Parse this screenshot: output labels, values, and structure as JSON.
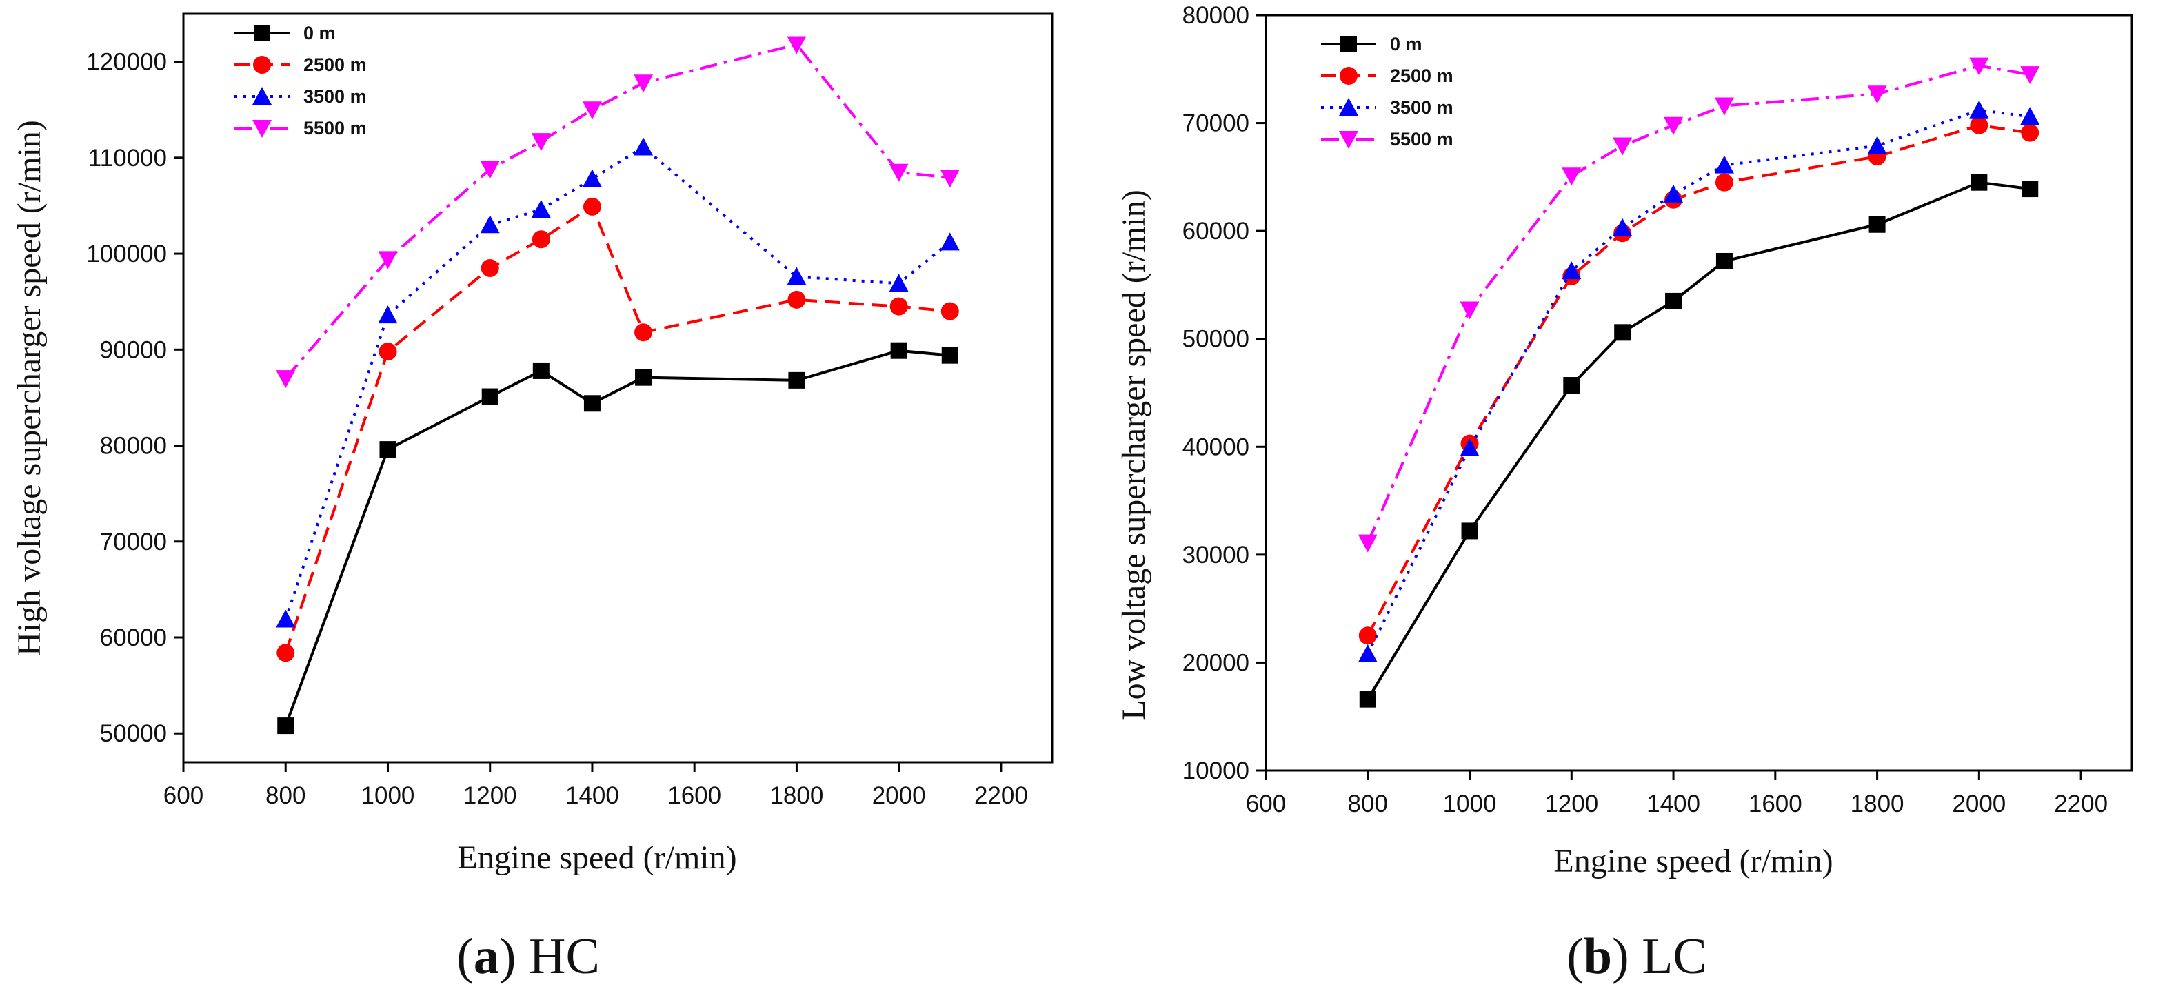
{
  "panels": [
    {
      "caption_letter": "a",
      "caption_text": "HC"
    },
    {
      "caption_letter": "b",
      "caption_text": "LC"
    }
  ],
  "chart_data": [
    {
      "type": "line",
      "title": "",
      "xlabel": "Engine speed  (r/min)",
      "ylabel": "High voltage supercharger speed (r/min)",
      "xlim": [
        600,
        2300
      ],
      "ylim": [
        47000,
        125000
      ],
      "xticks": [
        600,
        800,
        1000,
        1200,
        1400,
        1600,
        1800,
        2000,
        2200
      ],
      "yticks": [
        50000,
        60000,
        70000,
        80000,
        90000,
        100000,
        110000,
        120000
      ],
      "legend_position": "top-left",
      "x": [
        800,
        1000,
        1200,
        1300,
        1400,
        1500,
        1800,
        2000,
        2100
      ],
      "series": [
        {
          "name": "0 m",
          "color": "#000000",
          "marker": "square",
          "dash": "solid",
          "values": [
            50800,
            79600,
            85100,
            87800,
            84400,
            87100,
            86800,
            89900,
            89400
          ]
        },
        {
          "name": "2500 m",
          "color": "#ff0000",
          "marker": "circle",
          "dash": "dashed",
          "values": [
            58400,
            89800,
            98500,
            101500,
            104900,
            91800,
            95200,
            94500,
            94000
          ]
        },
        {
          "name": "3500 m",
          "color": "#0000ff",
          "marker": "triangle-up",
          "dash": "dotted",
          "values": [
            61900,
            93600,
            103000,
            104600,
            107800,
            111100,
            97600,
            96900,
            101200
          ]
        },
        {
          "name": "5500 m",
          "color": "#ff00ff",
          "marker": "triangle-down",
          "dash": "dashdot",
          "values": [
            87000,
            99400,
            108800,
            111700,
            115000,
            117800,
            121800,
            108500,
            107900
          ]
        }
      ]
    },
    {
      "type": "line",
      "title": "",
      "xlabel": "Engine speed  (r/min)",
      "ylabel": "Low voltage supercharger speed  (r/min)",
      "xlim": [
        600,
        2300
      ],
      "ylim": [
        10000,
        80000
      ],
      "xticks": [
        600,
        800,
        1000,
        1200,
        1400,
        1600,
        1800,
        2000,
        2200
      ],
      "yticks": [
        10000,
        20000,
        30000,
        40000,
        50000,
        60000,
        70000,
        80000
      ],
      "legend_position": "top-left",
      "x": [
        800,
        1000,
        1200,
        1300,
        1400,
        1500,
        1800,
        2000,
        2100
      ],
      "series": [
        {
          "name": "0 m",
          "color": "#000000",
          "marker": "square",
          "dash": "solid",
          "values": [
            16600,
            32200,
            45700,
            50600,
            53500,
            57200,
            60600,
            64500,
            63900
          ]
        },
        {
          "name": "2500 m",
          "color": "#ff0000",
          "marker": "circle",
          "dash": "dashed",
          "values": [
            22500,
            40300,
            55800,
            59800,
            62900,
            64500,
            66900,
            69800,
            69100
          ]
        },
        {
          "name": "3500 m",
          "color": "#0000ff",
          "marker": "triangle-up",
          "dash": "dotted",
          "values": [
            20800,
            39900,
            56300,
            60300,
            63400,
            66100,
            67900,
            71200,
            70600
          ]
        },
        {
          "name": "5500 m",
          "color": "#ff00ff",
          "marker": "triangle-down",
          "dash": "dashdot",
          "values": [
            31100,
            52700,
            65100,
            67900,
            69800,
            71600,
            72700,
            75300,
            74500
          ]
        }
      ]
    }
  ]
}
